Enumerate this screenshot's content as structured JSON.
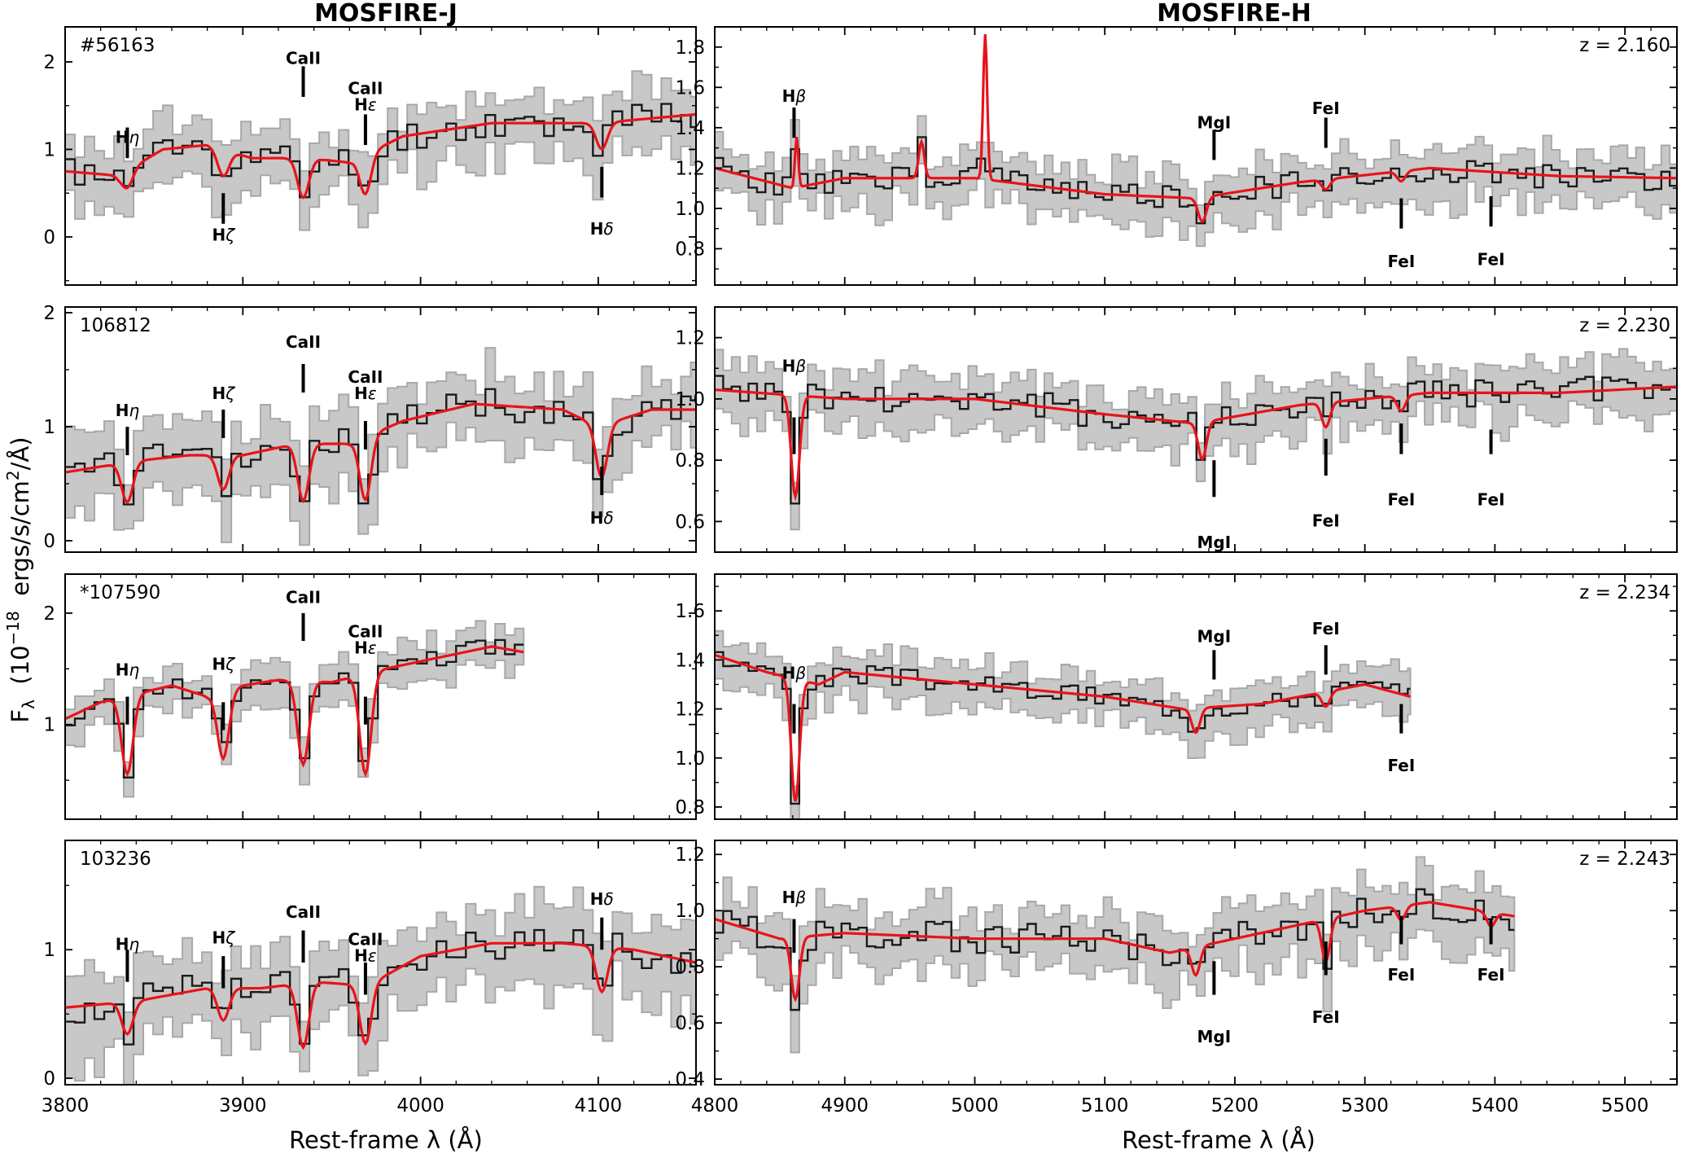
{
  "figure": {
    "col_titles": [
      "MOSFIRE-J",
      "MOSFIRE-H"
    ],
    "xlabel": "Rest-frame λ (Å)",
    "ylabel": {
      "main": "F",
      "sub": "λ",
      "rest": "  (10",
      "exp": "−18",
      "units": "  ergs/s/cm",
      "units_exp": "2",
      "units_end": "/Å)"
    }
  },
  "colors": {
    "data": "#1a1a1a",
    "model": "#e8131a",
    "band": "#c8c8c8",
    "band_edge": "#a8a8a8",
    "axis": "#000000"
  },
  "chart_data": [
    {
      "type": "line",
      "panel": "J",
      "row": 0,
      "id_label": "#56163",
      "xlim": [
        3800,
        4155
      ],
      "ylim": [
        -0.55,
        2.4
      ],
      "yticks": [
        0,
        1,
        2
      ],
      "xticks": [
        3800,
        3900,
        4000,
        4100
      ],
      "show_xticklabels": false,
      "series": [
        {
          "name": "observed"
        },
        {
          "name": "model"
        },
        {
          "name": "uncertainty"
        }
      ],
      "continuum": [
        [
          3800,
          0.75
        ],
        [
          3830,
          0.7
        ],
        [
          3855,
          1.0
        ],
        [
          3880,
          1.05
        ],
        [
          3905,
          0.9
        ],
        [
          3935,
          0.9
        ],
        [
          3960,
          0.85
        ],
        [
          3990,
          1.15
        ],
        [
          4040,
          1.3
        ],
        [
          4100,
          1.3
        ],
        [
          4155,
          1.4
        ]
      ],
      "lines": [
        {
          "x": 3835,
          "d": 0.2
        },
        {
          "x": 3889,
          "d": 0.3
        },
        {
          "x": 3934,
          "d": 0.45
        },
        {
          "x": 3969,
          "d": 0.45
        },
        {
          "x": 4102,
          "d": 0.3
        }
      ],
      "noise": 0.22,
      "band": 0.4,
      "seed": 11,
      "labels": [
        {
          "text": "Hη",
          "x": 3835,
          "pos": "above",
          "tip": 1.15,
          "tick": [
            0.9,
            1.25
          ],
          "italic_suffix": true
        },
        {
          "text": "Hζ",
          "x": 3889,
          "pos": "below",
          "tip": 0.05,
          "tick": [
            0.15,
            0.5
          ],
          "italic_suffix": true
        },
        {
          "text": "CaII",
          "x": 3934,
          "pos": "above",
          "tip": 2.05,
          "tick": [
            1.6,
            1.95
          ]
        },
        {
          "text": "CaII",
          "x": 3969,
          "pos": "above2",
          "tip": 1.65,
          "tick": [
            1.05,
            1.4
          ],
          "sub": "Hε"
        },
        {
          "text": "Hδ",
          "x": 4102,
          "pos": "below",
          "tip": 0.12,
          "tick": [
            0.45,
            0.8
          ],
          "italic_suffix": true
        }
      ]
    },
    {
      "type": "line",
      "panel": "H",
      "row": 0,
      "z_label": "z = 2.160",
      "xlim": [
        4800,
        5540
      ],
      "ylim": [
        0.62,
        1.9
      ],
      "yticks": [
        0.8,
        1.0,
        1.2,
        1.4,
        1.6,
        1.8
      ],
      "xticks": [
        4800,
        4900,
        5000,
        5100,
        5200,
        5300,
        5400,
        5500
      ],
      "show_xticklabels": false,
      "continuum": [
        [
          4800,
          1.2
        ],
        [
          4860,
          1.1
        ],
        [
          4900,
          1.15
        ],
        [
          5000,
          1.15
        ],
        [
          5100,
          1.07
        ],
        [
          5170,
          1.05
        ],
        [
          5250,
          1.13
        ],
        [
          5350,
          1.2
        ],
        [
          5450,
          1.16
        ],
        [
          5540,
          1.15
        ]
      ],
      "lines": [
        {
          "x": 5175,
          "d": 0.12
        },
        {
          "x": 5270,
          "d": 0.05
        },
        {
          "x": 5328,
          "d": 0.05
        }
      ],
      "emission": [
        {
          "x": 4863,
          "h": 0.25,
          "w": 1.8
        },
        {
          "x": 4959,
          "h": 0.18,
          "w": 3
        },
        {
          "x": 5008,
          "h": 0.72,
          "w": 2.2
        }
      ],
      "noise": 0.08,
      "band": 0.15,
      "seed": 23,
      "labels": [
        {
          "text": "Hβ",
          "x": 4861,
          "pos": "above",
          "tip": 1.56,
          "tick": [
            1.35,
            1.5
          ],
          "italic_suffix": true
        },
        {
          "text": "MgI",
          "x": 5184,
          "pos": "above",
          "tip": 1.43,
          "tick": [
            1.24,
            1.39
          ]
        },
        {
          "text": "FeI",
          "x": 5270,
          "pos": "above",
          "tip": 1.5,
          "tick": [
            1.3,
            1.45
          ]
        },
        {
          "text": "FeI",
          "x": 5328,
          "pos": "below",
          "tip": 0.75,
          "tick": [
            0.9,
            1.05
          ]
        },
        {
          "text": "FeI",
          "x": 5397,
          "pos": "below",
          "tip": 0.76,
          "tick": [
            0.91,
            1.06
          ]
        }
      ]
    },
    {
      "type": "line",
      "panel": "J",
      "row": 1,
      "id_label": "106812",
      "xlim": [
        3800,
        4155
      ],
      "ylim": [
        -0.1,
        2.05
      ],
      "yticks": [
        0,
        1,
        2
      ],
      "xticks": [
        3800,
        3900,
        4000,
        4100
      ],
      "show_xticklabels": false,
      "continuum": [
        [
          3800,
          0.6
        ],
        [
          3840,
          0.7
        ],
        [
          3870,
          0.75
        ],
        [
          3900,
          0.75
        ],
        [
          3930,
          0.85
        ],
        [
          3960,
          0.85
        ],
        [
          3990,
          1.05
        ],
        [
          4030,
          1.2
        ],
        [
          4080,
          1.15
        ],
        [
          4100,
          1.0
        ],
        [
          4130,
          1.15
        ],
        [
          4155,
          1.15
        ]
      ],
      "lines": [
        {
          "x": 3835,
          "d": 0.35
        },
        {
          "x": 3889,
          "d": 0.3
        },
        {
          "x": 3934,
          "d": 0.5
        },
        {
          "x": 3969,
          "d": 0.55
        },
        {
          "x": 4102,
          "d": 0.45
        }
      ],
      "noise": 0.18,
      "band": 0.35,
      "seed": 37,
      "labels": [
        {
          "text": "Hη",
          "x": 3835,
          "pos": "above",
          "tip": 1.15,
          "tick": [
            0.75,
            1.0
          ],
          "italic_suffix": true
        },
        {
          "text": "Hζ",
          "x": 3889,
          "pos": "above",
          "tip": 1.3,
          "tick": [
            0.9,
            1.15
          ],
          "italic_suffix": true
        },
        {
          "text": "CaII",
          "x": 3934,
          "pos": "above",
          "tip": 1.75,
          "tick": [
            1.3,
            1.55
          ]
        },
        {
          "text": "CaII",
          "x": 3969,
          "pos": "above2",
          "tip": 1.4,
          "tick": [
            0.8,
            1.05
          ],
          "sub": "Hε"
        },
        {
          "text": "Hδ",
          "x": 4102,
          "pos": "below",
          "tip": 0.22,
          "tick": [
            0.4,
            0.65
          ],
          "italic_suffix": true
        }
      ]
    },
    {
      "type": "line",
      "panel": "H",
      "row": 1,
      "z_label": "z = 2.230",
      "xlim": [
        4800,
        5540
      ],
      "ylim": [
        0.5,
        1.3
      ],
      "yticks": [
        0.6,
        0.8,
        1.0,
        1.2
      ],
      "xticks": [
        4800,
        4900,
        5000,
        5100,
        5200,
        5300,
        5400,
        5500
      ],
      "show_xticklabels": false,
      "continuum": [
        [
          4800,
          1.03
        ],
        [
          4900,
          1.0
        ],
        [
          5000,
          1.0
        ],
        [
          5100,
          0.95
        ],
        [
          5170,
          0.92
        ],
        [
          5250,
          0.98
        ],
        [
          5350,
          1.02
        ],
        [
          5450,
          1.02
        ],
        [
          5540,
          1.04
        ]
      ],
      "lines": [
        {
          "x": 4862,
          "d": 0.33
        },
        {
          "x": 5175,
          "d": 0.12
        },
        {
          "x": 5270,
          "d": 0.08
        },
        {
          "x": 5328,
          "d": 0.05
        }
      ],
      "noise": 0.06,
      "band": 0.1,
      "seed": 41,
      "labels": [
        {
          "text": "Hβ",
          "x": 4861,
          "pos": "above",
          "tip": 1.11,
          "tick": [
            0.82,
            0.94
          ],
          "italic_suffix": true
        },
        {
          "text": "MgI",
          "x": 5184,
          "pos": "below",
          "tip": 0.54,
          "tick": [
            0.68,
            0.8
          ]
        },
        {
          "text": "FeI",
          "x": 5270,
          "pos": "below",
          "tip": 0.61,
          "tick": [
            0.75,
            0.87
          ]
        },
        {
          "text": "FeI",
          "x": 5328,
          "pos": "below",
          "tip": 0.68,
          "tick": [
            0.82,
            0.92
          ]
        },
        {
          "text": "FeI",
          "x": 5397,
          "pos": "below",
          "tip": 0.68,
          "tick": [
            0.82,
            0.9
          ]
        }
      ]
    },
    {
      "type": "line",
      "panel": "J",
      "row": 2,
      "id_label": "*107590",
      "xlim": [
        3800,
        4155
      ],
      "ylim": [
        0.15,
        2.35
      ],
      "yticks": [
        1,
        2
      ],
      "xticks": [
        3800,
        3900,
        4000,
        4100
      ],
      "show_xticklabels": false,
      "xmax_data": 4058,
      "continuum": [
        [
          3800,
          1.05
        ],
        [
          3820,
          1.2
        ],
        [
          3860,
          1.35
        ],
        [
          3880,
          1.25
        ],
        [
          3900,
          1.35
        ],
        [
          3920,
          1.4
        ],
        [
          3950,
          1.38
        ],
        [
          3980,
          1.5
        ],
        [
          4010,
          1.6
        ],
        [
          4040,
          1.7
        ],
        [
          4058,
          1.65
        ]
      ],
      "lines": [
        {
          "x": 3835,
          "d": 0.7
        },
        {
          "x": 3889,
          "d": 0.6
        },
        {
          "x": 3934,
          "d": 0.75
        },
        {
          "x": 3969,
          "d": 0.9
        }
      ],
      "noise": 0.1,
      "band": 0.2,
      "seed": 53,
      "labels": [
        {
          "text": "Hη",
          "x": 3835,
          "pos": "above",
          "tip": 1.5,
          "tick": [
            1.0,
            1.25
          ],
          "italic_suffix": true
        },
        {
          "text": "Hζ",
          "x": 3889,
          "pos": "above",
          "tip": 1.55,
          "tick": [
            0.95,
            1.2
          ],
          "italic_suffix": true
        },
        {
          "text": "CaII",
          "x": 3934,
          "pos": "above",
          "tip": 2.15,
          "tick": [
            1.75,
            2.0
          ]
        },
        {
          "text": "CaII",
          "x": 3969,
          "pos": "above2",
          "tip": 1.8,
          "tick": [
            1.0,
            1.25
          ],
          "sub": "Hε"
        }
      ]
    },
    {
      "type": "line",
      "panel": "H",
      "row": 2,
      "z_label": "z = 2.234",
      "xlim": [
        4800,
        5540
      ],
      "ylim": [
        0.75,
        1.75
      ],
      "yticks": [
        0.8,
        1.0,
        1.2,
        1.4,
        1.6
      ],
      "xticks": [
        4800,
        4900,
        5000,
        5100,
        5200,
        5300,
        5400,
        5500
      ],
      "show_xticklabels": false,
      "xmax_data": 5335,
      "continuum": [
        [
          4800,
          1.42
        ],
        [
          4840,
          1.35
        ],
        [
          4880,
          1.3
        ],
        [
          4900,
          1.35
        ],
        [
          5000,
          1.3
        ],
        [
          5100,
          1.25
        ],
        [
          5160,
          1.2
        ],
        [
          5220,
          1.22
        ],
        [
          5300,
          1.3
        ],
        [
          5335,
          1.25
        ]
      ],
      "lines": [
        {
          "x": 4862,
          "d": 0.5
        },
        {
          "x": 5170,
          "d": 0.1
        },
        {
          "x": 5270,
          "d": 0.06
        }
      ],
      "noise": 0.05,
      "band": 0.1,
      "seed": 67,
      "labels": [
        {
          "text": "Hβ",
          "x": 4861,
          "pos": "above",
          "tip": 1.35,
          "tick": [
            1.1,
            1.22
          ],
          "italic_suffix": true
        },
        {
          "text": "MgI",
          "x": 5184,
          "pos": "above",
          "tip": 1.5,
          "tick": [
            1.32,
            1.44
          ]
        },
        {
          "text": "FeI",
          "x": 5270,
          "pos": "above",
          "tip": 1.53,
          "tick": [
            1.34,
            1.46
          ]
        },
        {
          "text": "FeI",
          "x": 5328,
          "pos": "below",
          "tip": 0.98,
          "tick": [
            1.1,
            1.22
          ]
        }
      ]
    },
    {
      "type": "line",
      "panel": "J",
      "row": 3,
      "id_label": "103236",
      "xlim": [
        3800,
        4155
      ],
      "ylim": [
        -0.05,
        1.85
      ],
      "yticks": [
        0,
        1
      ],
      "xticks": [
        3800,
        3900,
        4000,
        4100
      ],
      "show_xticklabels": true,
      "continuum": [
        [
          3800,
          0.55
        ],
        [
          3840,
          0.6
        ],
        [
          3880,
          0.7
        ],
        [
          3910,
          0.7
        ],
        [
          3940,
          0.75
        ],
        [
          3970,
          0.72
        ],
        [
          4000,
          0.95
        ],
        [
          4040,
          1.05
        ],
        [
          4080,
          1.05
        ],
        [
          4120,
          1.0
        ],
        [
          4155,
          0.9
        ]
      ],
      "lines": [
        {
          "x": 3835,
          "d": 0.25
        },
        {
          "x": 3889,
          "d": 0.25
        },
        {
          "x": 3934,
          "d": 0.5
        },
        {
          "x": 3969,
          "d": 0.45
        },
        {
          "x": 4102,
          "d": 0.35
        }
      ],
      "noise": 0.16,
      "band": 0.35,
      "seed": 71,
      "labels": [
        {
          "text": "Hη",
          "x": 3835,
          "pos": "above",
          "tip": 1.05,
          "tick": [
            0.75,
            1.0
          ],
          "italic_suffix": true
        },
        {
          "text": "Hζ",
          "x": 3889,
          "pos": "above",
          "tip": 1.1,
          "tick": [
            0.7,
            0.95
          ],
          "italic_suffix": true
        },
        {
          "text": "CaII",
          "x": 3934,
          "pos": "above",
          "tip": 1.3,
          "tick": [
            0.9,
            1.15
          ]
        },
        {
          "text": "CaII",
          "x": 3969,
          "pos": "above2",
          "tip": 1.05,
          "tick": [
            0.65,
            0.9
          ],
          "sub": "Hε"
        },
        {
          "text": "Hδ",
          "x": 4102,
          "pos": "above",
          "tip": 1.4,
          "tick": [
            1.0,
            1.25
          ],
          "italic_suffix": true
        }
      ]
    },
    {
      "type": "line",
      "panel": "H",
      "row": 3,
      "z_label": "z = 2.243",
      "xlim": [
        4800,
        5540
      ],
      "ylim": [
        0.38,
        1.25
      ],
      "yticks": [
        0.4,
        0.6,
        0.8,
        1.0,
        1.2
      ],
      "xticks": [
        4800,
        4900,
        5000,
        5100,
        5200,
        5300,
        5400,
        5500
      ],
      "show_xticklabels": true,
      "xmax_data": 5415,
      "continuum": [
        [
          4800,
          0.97
        ],
        [
          4850,
          0.9
        ],
        [
          4900,
          0.92
        ],
        [
          5000,
          0.9
        ],
        [
          5100,
          0.9
        ],
        [
          5150,
          0.85
        ],
        [
          5200,
          0.9
        ],
        [
          5250,
          0.95
        ],
        [
          5300,
          1.0
        ],
        [
          5350,
          1.03
        ],
        [
          5415,
          0.98
        ]
      ],
      "lines": [
        {
          "x": 4862,
          "d": 0.22
        },
        {
          "x": 5170,
          "d": 0.1
        },
        {
          "x": 5270,
          "d": 0.15
        },
        {
          "x": 5328,
          "d": 0.05
        },
        {
          "x": 5397,
          "d": 0.05
        }
      ],
      "noise": 0.07,
      "band": 0.12,
      "seed": 89,
      "labels": [
        {
          "text": "Hβ",
          "x": 4861,
          "pos": "above",
          "tip": 1.05,
          "tick": [
            0.85,
            0.97
          ],
          "italic_suffix": true
        },
        {
          "text": "MgI",
          "x": 5184,
          "pos": "below",
          "tip": 0.56,
          "tick": [
            0.7,
            0.82
          ]
        },
        {
          "text": "FeI",
          "x": 5270,
          "pos": "below",
          "tip": 0.63,
          "tick": [
            0.77,
            0.89
          ]
        },
        {
          "text": "FeI",
          "x": 5328,
          "pos": "below",
          "tip": 0.78,
          "tick": [
            0.88,
            0.98
          ]
        },
        {
          "text": "FeI",
          "x": 5397,
          "pos": "below",
          "tip": 0.78,
          "tick": [
            0.88,
            0.97
          ]
        }
      ]
    }
  ]
}
